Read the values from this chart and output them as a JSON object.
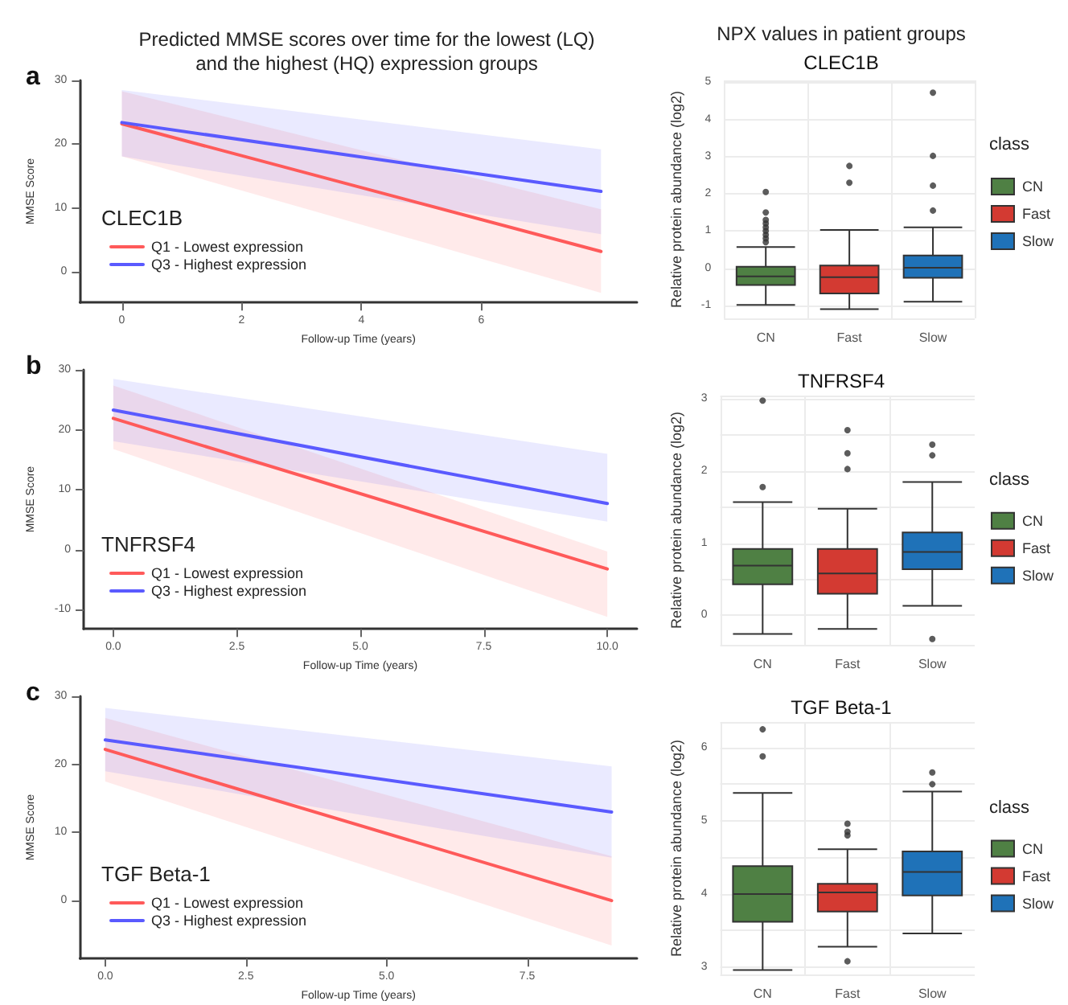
{
  "chart_data": [
    {
      "type": "line",
      "title": "Predicted MMSE scores over time for the lowest (LQ)\nand the highest (HQ) expression groups",
      "annotations": [
        "a"
      ],
      "xlabel": "Follow-up Time (years)",
      "ylabel": "MMSE Score",
      "legend_title": "CLEC1B",
      "legend": "bottom left",
      "xlim": [
        -0.7,
        8.6
      ],
      "xticks": [
        0,
        2,
        4,
        6
      ],
      "ylim": [
        -4.8,
        30
      ],
      "yticks": [
        0,
        10,
        20,
        30
      ],
      "grid": false,
      "series": [
        {
          "name": "Q1 - Lowest expression",
          "color": "#ff5a5a",
          "x": [
            0,
            8
          ],
          "values": [
            23.2,
            3.2
          ],
          "lower": [
            18.1,
            -3.3
          ],
          "upper": [
            28.3,
            9.8
          ]
        },
        {
          "name": "Q3 - Highest expression",
          "color": "#5a5aff",
          "x": [
            0,
            8
          ],
          "values": [
            23.4,
            12.6
          ],
          "lower": [
            18.1,
            5.9
          ],
          "upper": [
            28.5,
            19.2
          ]
        }
      ]
    },
    {
      "type": "box",
      "title": "NPX values in patient groups",
      "subtitle": "CLEC1B",
      "ylabel": "Relative protein abundance (log2)",
      "legend_title": "class",
      "legend": "right",
      "categories": [
        "CN",
        "Fast",
        "Slow"
      ],
      "ylim": [
        -1.35,
        5.05
      ],
      "yticks": [
        -1,
        0,
        1,
        2,
        3,
        4,
        5
      ],
      "grid": true,
      "series": [
        {
          "name": "CN",
          "color": "#4f8044",
          "boxes": [
            {
              "low": -0.99,
              "q1": -0.45,
              "median": -0.22,
              "q3": 0.04,
              "high": 0.57,
              "outliers": [
                0.7,
                0.8,
                0.9,
                1.0,
                1.1,
                1.2,
                1.3,
                1.5,
                2.05
              ]
            },
            null,
            null
          ]
        },
        {
          "name": "Fast",
          "color": "#d33a32",
          "boxes": [
            null,
            {
              "low": -1.1,
              "q1": -0.68,
              "median": -0.24,
              "q3": 0.07,
              "high": 1.03,
              "outliers": [
                2.3,
                2.75
              ]
            },
            null
          ]
        },
        {
          "name": "Slow",
          "color": "#1f72b8",
          "boxes": [
            null,
            null,
            {
              "low": -0.9,
              "q1": -0.26,
              "median": 0.01,
              "q3": 0.34,
              "high": 1.1,
              "outliers": [
                1.55,
                2.22,
                3.02,
                4.72
              ]
            }
          ]
        }
      ]
    },
    {
      "type": "line",
      "annotations": [
        "b"
      ],
      "xlabel": "Follow-up Time (years)",
      "ylabel": "MMSE Score",
      "legend_title": "TNFRSF4",
      "legend": "bottom left",
      "xlim": [
        -0.6,
        10.6
      ],
      "xticks": [
        {
          "value": 0,
          "label": "0.0"
        },
        {
          "value": 2.5,
          "label": "2.5"
        },
        {
          "value": 5,
          "label": "5.0"
        },
        {
          "value": 7.5,
          "label": "7.5"
        },
        {
          "value": 10,
          "label": "10.0"
        }
      ],
      "ylim": [
        -13.2,
        30
      ],
      "yticks": [
        -10,
        0,
        10,
        20,
        30
      ],
      "grid": false,
      "series": [
        {
          "name": "Q1 - Lowest expression",
          "color": "#ff5a5a",
          "x": [
            0,
            10
          ],
          "values": [
            21.9,
            -3.2
          ],
          "lower": [
            16.8,
            -11.2
          ],
          "upper": [
            27.4,
            -0.3
          ]
        },
        {
          "name": "Q3 - Highest expression",
          "color": "#5a5aff",
          "x": [
            0,
            10
          ],
          "values": [
            23.3,
            7.7
          ],
          "lower": [
            18.1,
            4.7
          ],
          "upper": [
            28.5,
            16.0
          ]
        }
      ]
    },
    {
      "type": "box",
      "title": "TNFRSF4",
      "ylabel": "Relative protein abundance (log2)",
      "legend_title": "class",
      "legend": "right",
      "categories": [
        "CN",
        "Fast",
        "Slow"
      ],
      "ylim": [
        -0.41,
        3.05
      ],
      "yticks": [
        0,
        1,
        2,
        3
      ],
      "grid": true,
      "series": [
        {
          "name": "CN",
          "color": "#4f8044",
          "boxes": [
            {
              "low": -0.26,
              "q1": 0.43,
              "median": 0.69,
              "q3": 0.92,
              "high": 1.57,
              "outliers": [
                1.78,
                2.98
              ]
            },
            null,
            null
          ]
        },
        {
          "name": "Fast",
          "color": "#d33a32",
          "boxes": [
            null,
            {
              "low": -0.19,
              "q1": 0.3,
              "median": 0.58,
              "q3": 0.92,
              "high": 1.48,
              "outliers": [
                2.03,
                2.25,
                2.57
              ]
            },
            null
          ]
        },
        {
          "name": "Slow",
          "color": "#1f72b8",
          "boxes": [
            null,
            null,
            {
              "low": 0.13,
              "q1": 0.64,
              "median": 0.88,
              "q3": 1.15,
              "high": 1.85,
              "outliers": [
                2.22,
                2.37,
                -0.33
              ]
            }
          ]
        }
      ]
    },
    {
      "type": "line",
      "annotations": [
        "c"
      ],
      "xlabel": "Follow-up Time (years)",
      "ylabel": "MMSE Score",
      "legend_title": "TGF Beta-1",
      "legend": "bottom left",
      "xlim": [
        -0.45,
        9.45
      ],
      "xticks": [
        {
          "value": 0,
          "label": "0.0"
        },
        {
          "value": 2.5,
          "label": "2.5"
        },
        {
          "value": 5,
          "label": "5.0"
        },
        {
          "value": 7.5,
          "label": "7.5"
        }
      ],
      "ylim": [
        -8.5,
        30
      ],
      "yticks": [
        0,
        10,
        20,
        30
      ],
      "grid": false,
      "series": [
        {
          "name": "Q1 - Lowest expression",
          "color": "#ff5a5a",
          "x": [
            0,
            9
          ],
          "values": [
            22.2,
            0
          ],
          "lower": [
            17.5,
            -6.6
          ],
          "upper": [
            26.8,
            6.5
          ]
        },
        {
          "name": "Q3 - Highest expression",
          "color": "#5a5aff",
          "x": [
            0,
            9
          ],
          "values": [
            23.6,
            13.0
          ],
          "lower": [
            19.0,
            6.3
          ],
          "upper": [
            28.3,
            19.7
          ]
        }
      ]
    },
    {
      "type": "box",
      "title": "TGF Beta-1",
      "ylabel": "Relative protein abundance (log2)",
      "legend_title": "class",
      "legend": "right",
      "categories": [
        "CN",
        "Fast",
        "Slow"
      ],
      "ylim": [
        2.9,
        6.35
      ],
      "yticks": [
        3,
        4,
        5,
        6
      ],
      "grid": true,
      "series": [
        {
          "name": "CN",
          "color": "#4f8044",
          "boxes": [
            {
              "low": 2.96,
              "q1": 3.62,
              "median": 4.0,
              "q3": 4.38,
              "high": 5.38,
              "outliers": [
                5.88,
                6.25
              ]
            },
            null,
            null
          ]
        },
        {
          "name": "Fast",
          "color": "#d33a32",
          "boxes": [
            null,
            {
              "low": 3.28,
              "q1": 3.76,
              "median": 4.02,
              "q3": 4.14,
              "high": 4.61,
              "outliers": [
                4.8,
                4.85,
                4.96,
                3.08
              ]
            },
            null
          ]
        },
        {
          "name": "Slow",
          "color": "#1f72b8",
          "boxes": [
            null,
            null,
            {
              "low": 3.46,
              "q1": 3.98,
              "median": 4.3,
              "q3": 4.58,
              "high": 5.4,
              "outliers": [
                5.5,
                5.66
              ]
            }
          ]
        }
      ]
    }
  ]
}
